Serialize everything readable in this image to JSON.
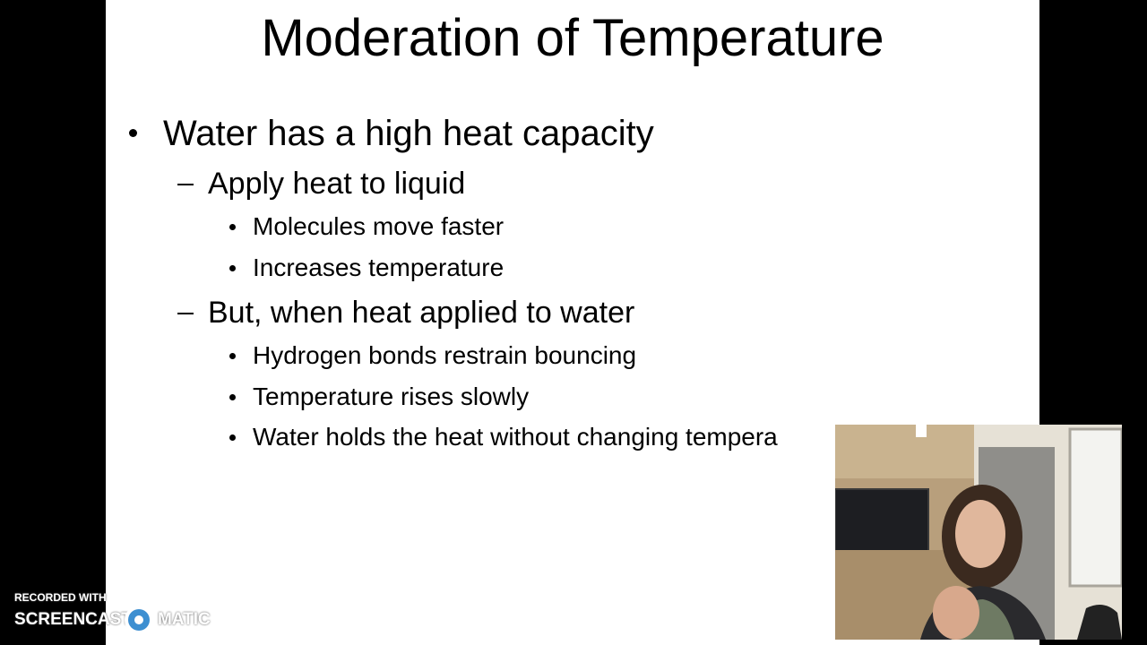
{
  "slide": {
    "title": "Moderation of Temperature",
    "bullets": [
      {
        "text": "Water has a high heat capacity",
        "items": [
          {
            "text": "Apply heat to liquid",
            "items": [
              "Molecules move faster",
              "Increases temperature"
            ]
          },
          {
            "text": "But, when heat applied to water",
            "items": [
              "Hydrogen bonds restrain bouncing",
              "Temperature rises slowly",
              "Water holds the heat without changing tempera"
            ]
          }
        ]
      }
    ]
  },
  "watermark": {
    "caption": "RECORDED WITH",
    "brand_left": "SCREENCAST",
    "brand_right": "MATIC"
  }
}
